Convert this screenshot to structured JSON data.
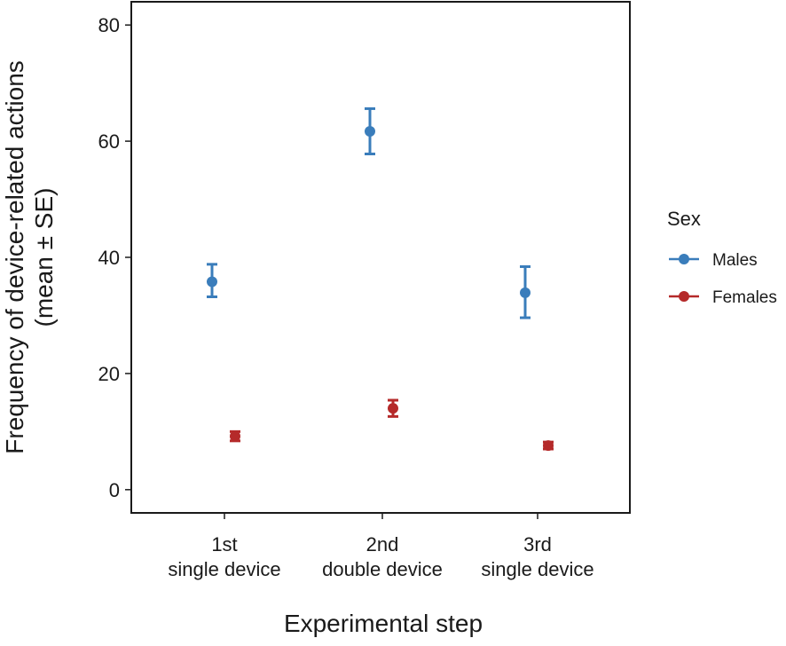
{
  "chart_data": {
    "type": "scatter",
    "title": "",
    "xlabel": "Experimental step",
    "ylabel": [
      "Frequency of device-related actions",
      "(mean ± SE)"
    ],
    "categories": [
      [
        "1st",
        "single device"
      ],
      [
        "2nd",
        "double device"
      ],
      [
        "3rd",
        "single device"
      ]
    ],
    "ylim": [
      -4,
      84
    ],
    "yticks": [
      0,
      20,
      40,
      60,
      80
    ],
    "grid": false,
    "legend": {
      "title": "Sex",
      "position": "right"
    },
    "series": [
      {
        "name": "Males",
        "color": "#3a7dbb",
        "values": [
          35.8,
          61.7,
          33.9
        ],
        "err_low": [
          33.2,
          57.8,
          29.6
        ],
        "err_high": [
          38.8,
          65.6,
          38.4
        ]
      },
      {
        "name": "Females",
        "color": "#b52a2a",
        "values": [
          9.2,
          14.0,
          7.6
        ],
        "err_low": [
          8.4,
          12.6,
          7.0
        ],
        "err_high": [
          10.0,
          15.4,
          8.2
        ]
      }
    ]
  }
}
